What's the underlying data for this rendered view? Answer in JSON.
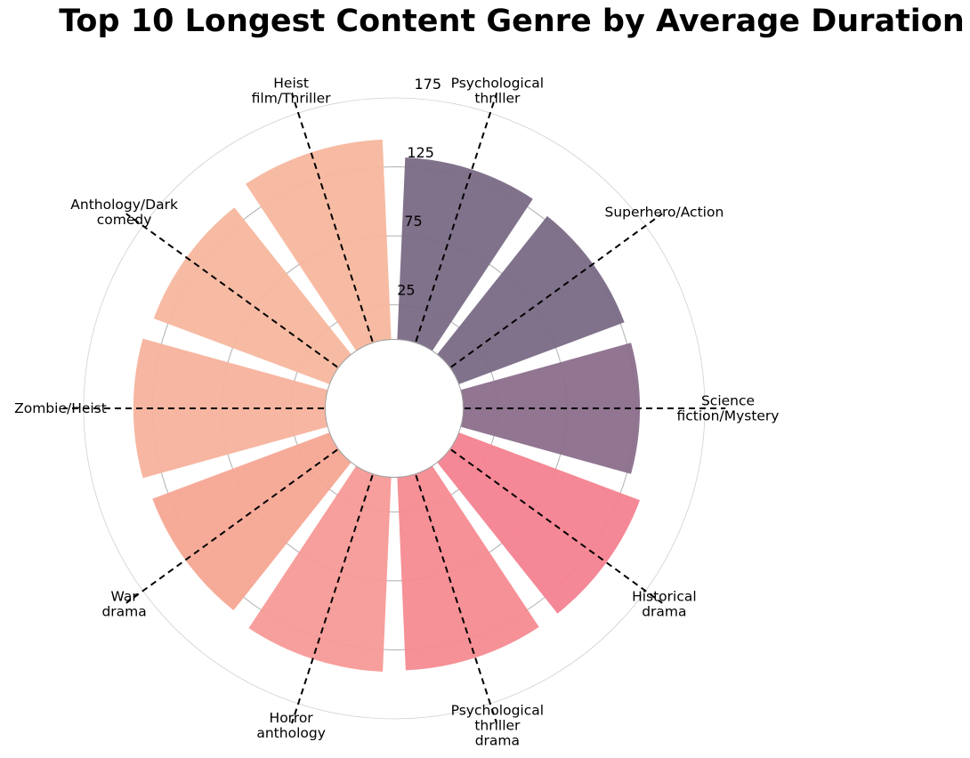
{
  "chart_data": {
    "type": "bar",
    "polar": true,
    "title": "Top 10 Longest Content Genre by Average Duration",
    "categories": [
      [
        "Science",
        "fiction/Mystery"
      ],
      [
        "Superhero/Action"
      ],
      [
        "Psychological",
        "thriller"
      ],
      [
        "Heist",
        "film/Thriller"
      ],
      [
        "Anthology/Dark",
        "comedy"
      ],
      [
        "Zombie/Heist"
      ],
      [
        "War",
        "drama"
      ],
      [
        "Horror",
        "anthology"
      ],
      [
        "Psychological",
        "thriller",
        "drama"
      ],
      [
        "Historical",
        "drama"
      ]
    ],
    "values": [
      128,
      128,
      132,
      145,
      136,
      139,
      137,
      141,
      140,
      140
    ],
    "colors": [
      "#8b6e8b",
      "#7a6a86",
      "#7a6a86",
      "#f7b79e",
      "#f7b79e",
      "#f7b29c",
      "#f6a693",
      "#f79a97",
      "#f68b91",
      "#f48290"
    ],
    "radial_ticks": [
      25,
      75,
      125,
      175
    ],
    "rlim": [
      -50,
      175
    ],
    "grid": true,
    "legend": "none"
  }
}
